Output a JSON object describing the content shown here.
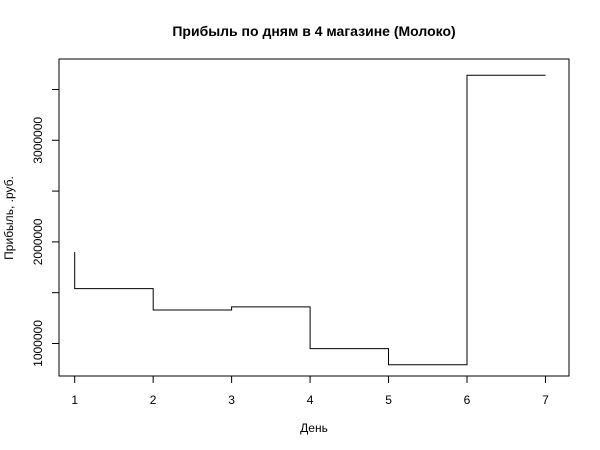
{
  "chart_data": {
    "type": "line",
    "style": "step",
    "title": "Прибыль по дням в 4 магазине (Молоко)",
    "xlabel": "День",
    "ylabel": "Прибыль, .руб.",
    "x_ticks": [
      1,
      2,
      3,
      4,
      5,
      6,
      7
    ],
    "y_ticks": [
      1000000,
      2000000,
      3000000
    ],
    "x_tick_labels": [
      "1",
      "2",
      "3",
      "4",
      "5",
      "6",
      "7"
    ],
    "y_tick_labels": [
      "1000000",
      "2000000",
      "3000000"
    ],
    "xlim": [
      0.8,
      7.3
    ],
    "ylim": [
      680000,
      3800000
    ],
    "grid": false,
    "line_color": "#000000",
    "series": [
      {
        "points": [
          {
            "x": 1,
            "y": 1900000
          },
          {
            "x": 1,
            "y": 1540000
          },
          {
            "x": 2,
            "y": 1540000
          },
          {
            "x": 2,
            "y": 1330000
          },
          {
            "x": 3,
            "y": 1330000
          },
          {
            "x": 3,
            "y": 1360000
          },
          {
            "x": 4,
            "y": 1360000
          },
          {
            "x": 4,
            "y": 950000
          },
          {
            "x": 5,
            "y": 950000
          },
          {
            "x": 5,
            "y": 790000
          },
          {
            "x": 6,
            "y": 790000
          },
          {
            "x": 6,
            "y": 3640000
          },
          {
            "x": 7,
            "y": 3640000
          }
        ]
      }
    ]
  }
}
